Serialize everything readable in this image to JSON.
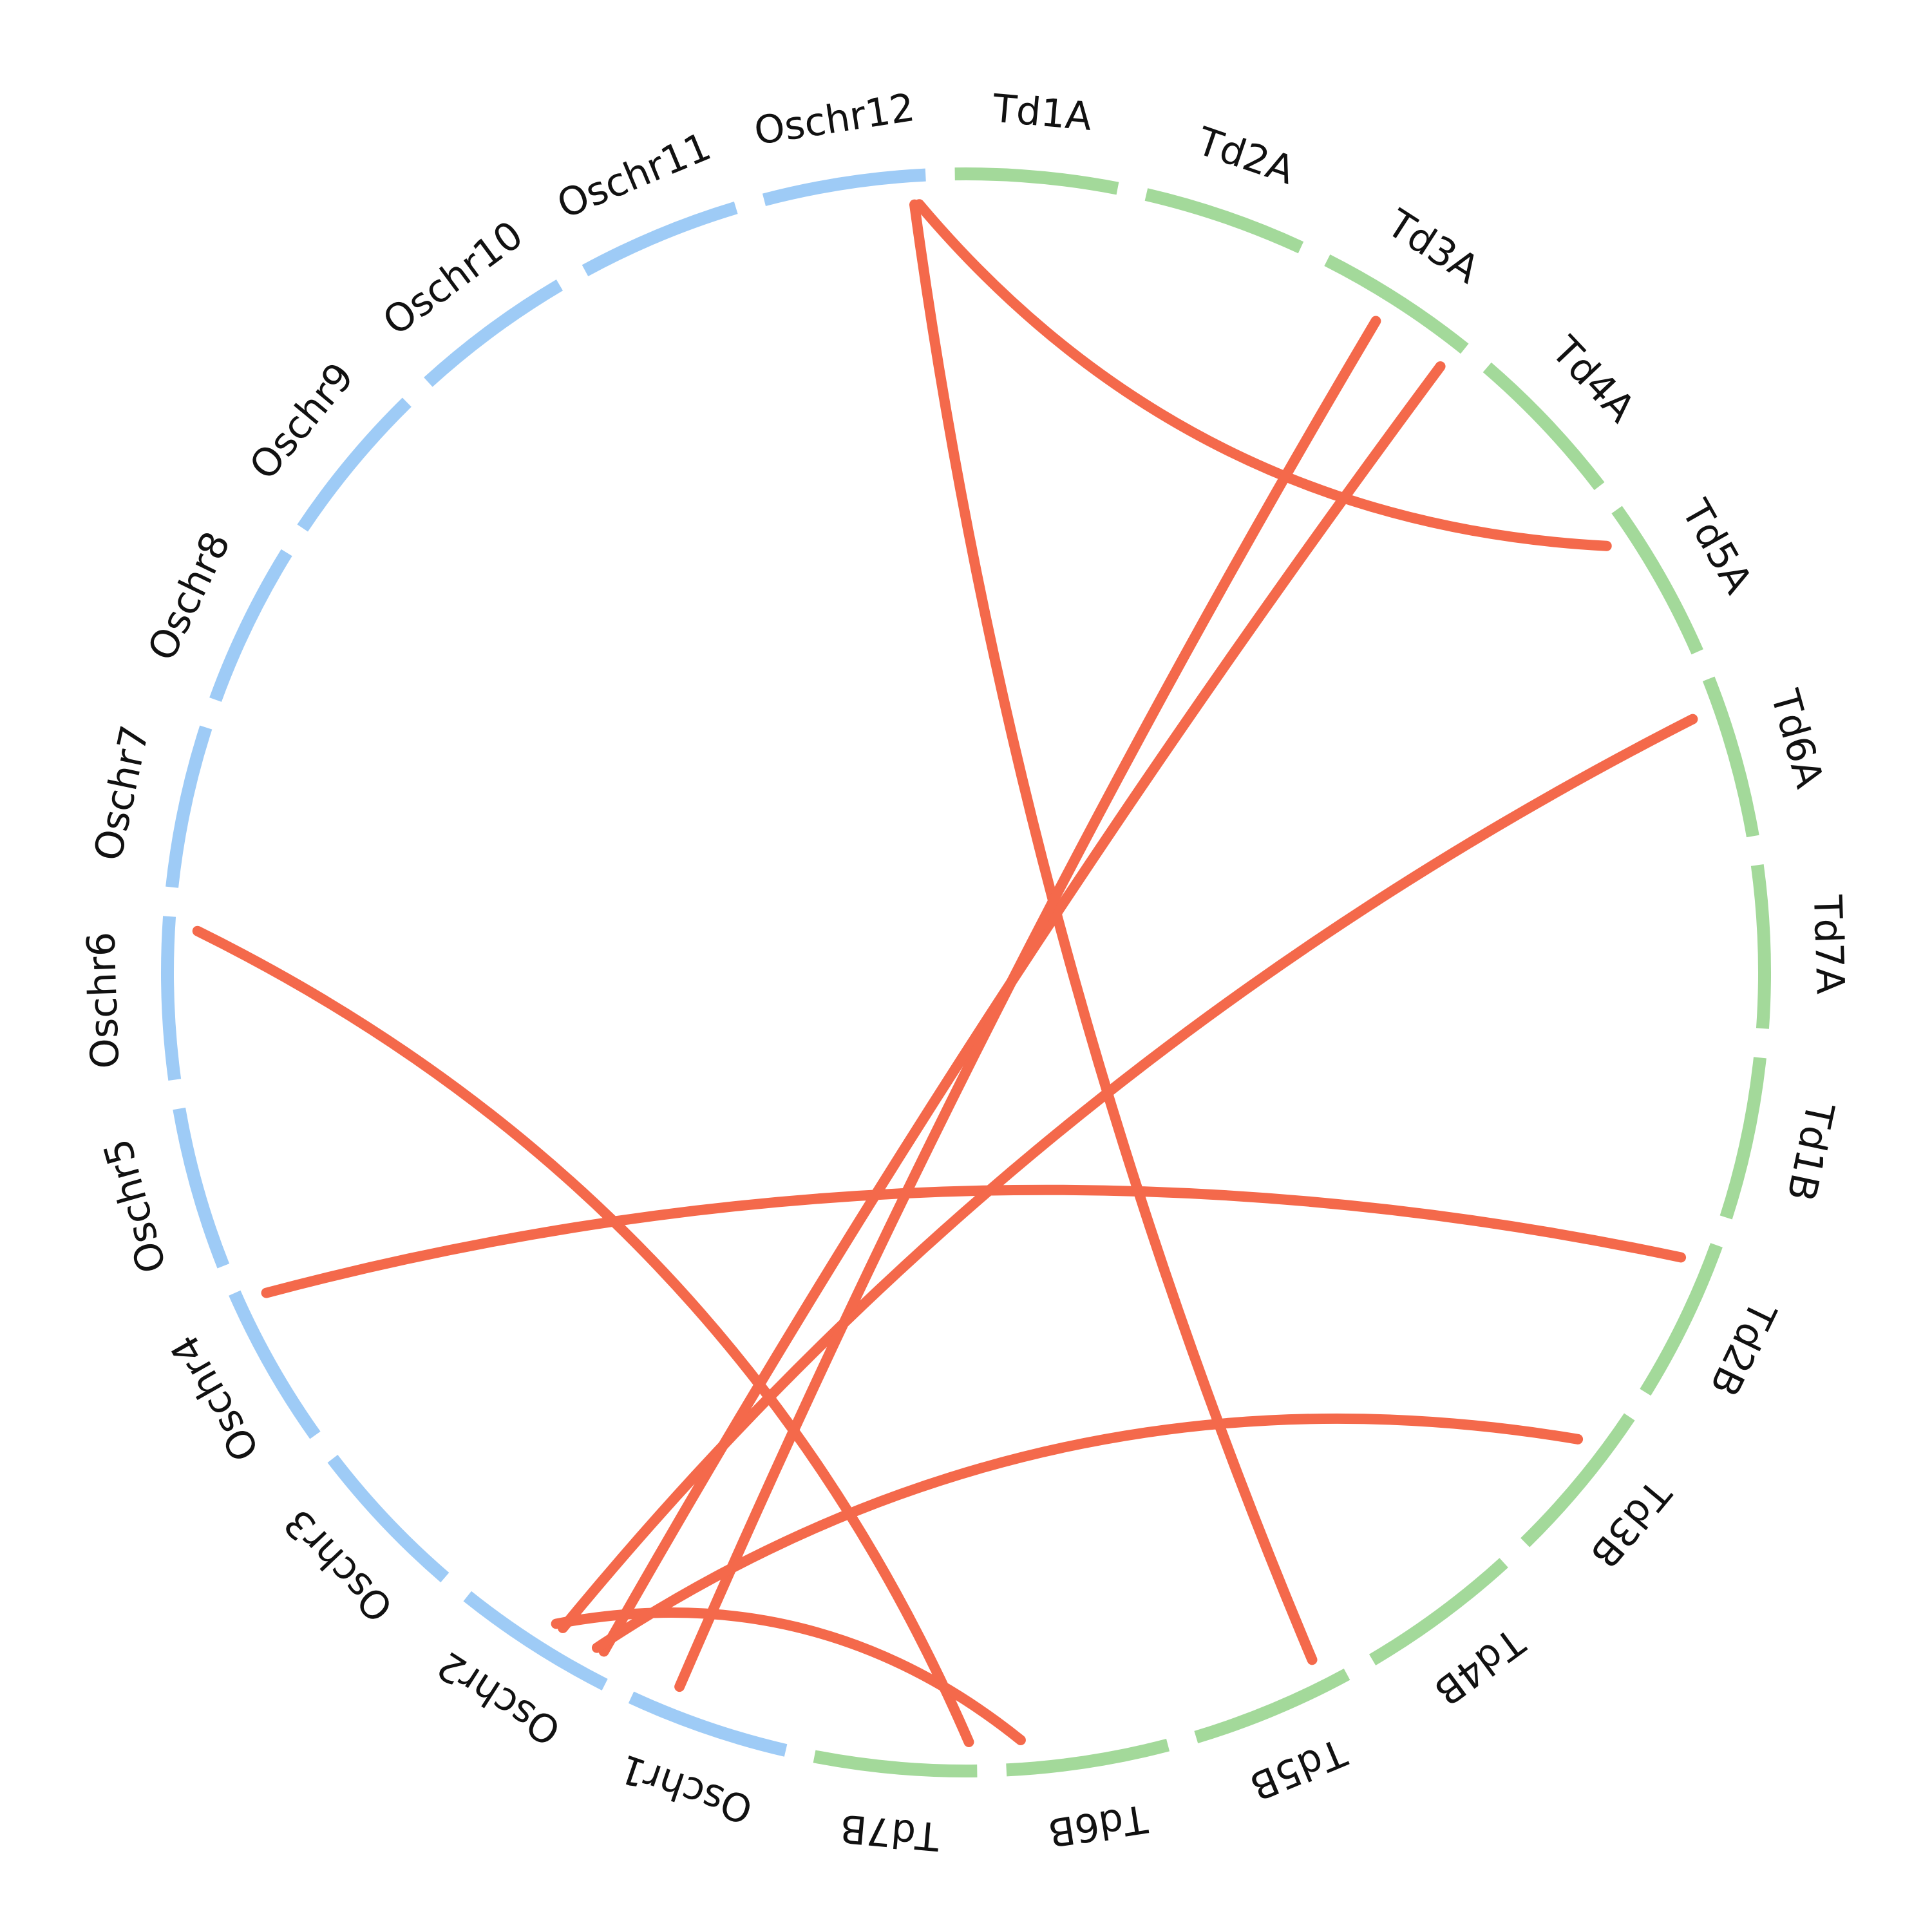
{
  "colors": {
    "oryza": "#9ecbf6",
    "durum": "#a3d99a",
    "link": "#f4694b",
    "label": "#111111"
  },
  "chart_data": {
    "type": "circos",
    "chromosomes": [
      {
        "id": "Td1A",
        "label": "Td1A",
        "group": "durum"
      },
      {
        "id": "Td2A",
        "label": "Td2A",
        "group": "durum"
      },
      {
        "id": "Td3A",
        "label": "Td3A",
        "group": "durum"
      },
      {
        "id": "Td4A",
        "label": "Td4A",
        "group": "durum"
      },
      {
        "id": "Td5A",
        "label": "Td5A",
        "group": "durum"
      },
      {
        "id": "Td6A",
        "label": "Td6A",
        "group": "durum"
      },
      {
        "id": "Td7A",
        "label": "Td7A",
        "group": "durum"
      },
      {
        "id": "Td1B",
        "label": "Td1B",
        "group": "durum"
      },
      {
        "id": "Td2B",
        "label": "Td2B",
        "group": "durum"
      },
      {
        "id": "Td3B",
        "label": "Td3B",
        "group": "durum"
      },
      {
        "id": "Td4B",
        "label": "Td4B",
        "group": "durum"
      },
      {
        "id": "Td5B",
        "label": "Td5B",
        "group": "durum"
      },
      {
        "id": "Td6B",
        "label": "Td6B",
        "group": "durum"
      },
      {
        "id": "Td7B",
        "label": "Td7B",
        "group": "durum"
      },
      {
        "id": "Oschr1",
        "label": "Oschr1",
        "group": "oryza"
      },
      {
        "id": "Oschr2",
        "label": "Oschr2",
        "group": "oryza"
      },
      {
        "id": "Oschr3",
        "label": "Oschr3",
        "group": "oryza"
      },
      {
        "id": "Oschr4",
        "label": "Oschr4",
        "group": "oryza"
      },
      {
        "id": "Oschr5",
        "label": "Oschr5",
        "group": "oryza"
      },
      {
        "id": "Oschr6",
        "label": "Oschr6",
        "group": "oryza"
      },
      {
        "id": "Oschr7",
        "label": "Oschr7",
        "group": "oryza"
      },
      {
        "id": "Oschr8",
        "label": "Oschr8",
        "group": "oryza"
      },
      {
        "id": "Oschr9",
        "label": "Oschr9",
        "group": "oryza"
      },
      {
        "id": "Oschr10",
        "label": "Oschr10",
        "group": "oryza"
      },
      {
        "id": "Oschr11",
        "label": "Oschr11",
        "group": "oryza"
      },
      {
        "id": "Oschr12",
        "label": "Oschr12",
        "group": "oryza"
      }
    ],
    "links": [
      {
        "from": "Oschr12",
        "from_pos": 0.95,
        "to": "Td5A",
        "to_pos": 0.15
      },
      {
        "from": "Oschr12",
        "from_pos": 0.92,
        "to": "Td5B",
        "to_pos": 0.15
      },
      {
        "from": "Oschr6",
        "from_pos": 0.92,
        "to": "Td7B",
        "to_pos": 0.05
      },
      {
        "from": "Oschr4",
        "from_pos": 0.92,
        "to": "Td2B",
        "to_pos": 0.15
      },
      {
        "from": "Oschr2",
        "from_pos": 0.4,
        "to": "Td6A",
        "to_pos": 0.2
      },
      {
        "from": "Oschr2",
        "from_pos": 0.1,
        "to": "Td3A",
        "to_pos": 0.95
      },
      {
        "from": "Oschr1",
        "from_pos": 0.75,
        "to": "Td3A",
        "to_pos": 0.45
      },
      {
        "from": "Oschr2",
        "from_pos": 0.45,
        "to": "Td6B",
        "to_pos": 0.9
      },
      {
        "from": "Oschr2",
        "from_pos": 0.15,
        "to": "Td3B",
        "to_pos": 0.3
      }
    ]
  }
}
